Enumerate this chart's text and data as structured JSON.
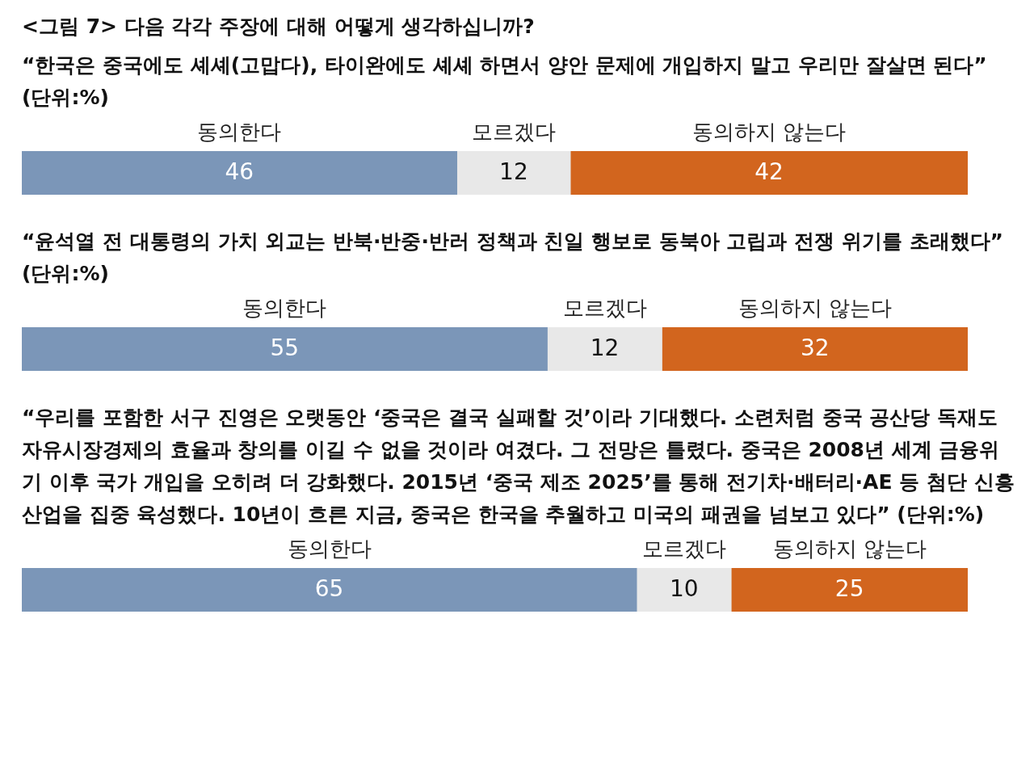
{
  "chart_data": [
    {
      "type": "bar",
      "orientation": "horizontal",
      "stacked": true,
      "title": "<그림 7> 다음 각각 주장에 대해 어떻게 생각하십니까?",
      "subtitle": "“한국은 중국에도 셰셰(고맙다), 타이완에도 셰셰 하면서 양안 문제에 개입하지 말고 우리만 잘살면 된다” (단위:%)",
      "categories": [
        null
      ],
      "legend": false,
      "data_labels": true,
      "series": [
        {
          "name": "동의한다",
          "color": "#7b96b8",
          "values": [
            46
          ]
        },
        {
          "name": "모르겠다",
          "color": "#e8e8e8",
          "values": [
            12
          ]
        },
        {
          "name": "동의하지 않는다",
          "color": "#d2651e",
          "values": [
            42
          ]
        }
      ]
    },
    {
      "type": "bar",
      "orientation": "horizontal",
      "stacked": true,
      "subtitle": "“윤석열 전 대통령의 가치 외교는 반북·반중·반러 정책과 친일 행보로 동북아 고립과 전쟁 위기를 초래했다” (단위:%)",
      "categories": [
        null
      ],
      "legend": false,
      "data_labels": true,
      "series": [
        {
          "name": "동의한다",
          "color": "#7b96b8",
          "values": [
            55
          ]
        },
        {
          "name": "모르겠다",
          "color": "#e8e8e8",
          "values": [
            12
          ]
        },
        {
          "name": "동의하지 않는다",
          "color": "#d2651e",
          "values": [
            32
          ]
        }
      ]
    },
    {
      "type": "bar",
      "orientation": "horizontal",
      "stacked": true,
      "subtitle": "“우리를 포함한 서구 진영은 오랫동안 ‘중국은 결국 실패할 것’이라 기대했다. 소련처럼 중국 공산당 독재도 자유시장경제의 효율과 창의를 이길 수 없을 것이라 여겼다. 그 전망은 틀렸다. 중국은 2008년 세계 금융위기 이후 국가 개입을 오히려 더 강화했다. 2015년 ‘중국 제조 2025’를 통해 전기차·배터리·AE 등 첨단 신흥 산업을 집중 육성했다. 10년이 흐른 지금, 중국은 한국을 추월하고 미국의 패권을 넘보고 있다” (단위:%)",
      "categories": [
        null
      ],
      "legend": false,
      "data_labels": true,
      "series": [
        {
          "name": "동의한다",
          "color": "#7b96b8",
          "values": [
            65
          ]
        },
        {
          "name": "모르겠다",
          "color": "#e8e8e8",
          "values": [
            10
          ]
        },
        {
          "name": "동의하지 않는다",
          "color": "#d2651e",
          "values": [
            25
          ]
        }
      ]
    }
  ]
}
